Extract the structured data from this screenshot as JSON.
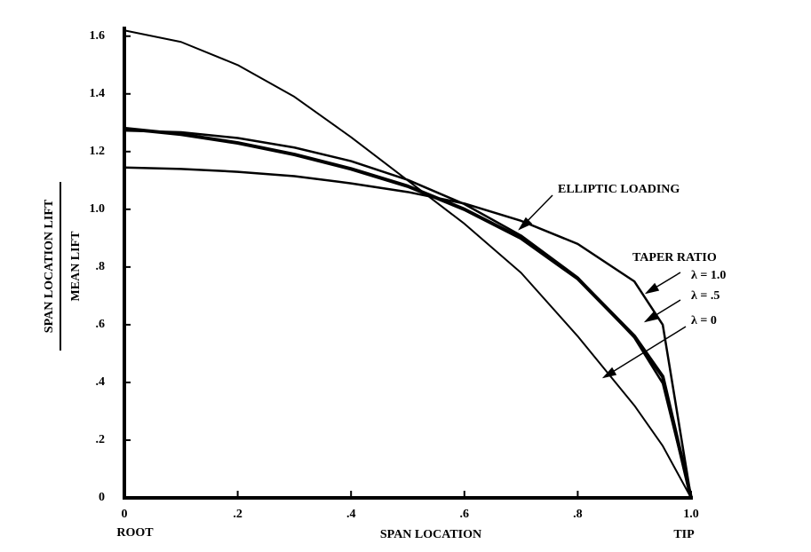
{
  "chart_data": {
    "type": "line",
    "ylabel": {
      "numerator": "SPAN LOCATION LIFT",
      "denominator": "MEAN LIFT"
    },
    "xlabel": "SPAN LOCATION",
    "x_end_labels": [
      "ROOT",
      "TIP"
    ],
    "annotations": [
      "ELLIPTIC LOADING",
      "TAPER RATIO",
      "λ = 1.0",
      "λ = .5",
      "λ = 0"
    ],
    "x": [
      0,
      0.1,
      0.2,
      0.3,
      0.4,
      0.5,
      0.6,
      0.7,
      0.8,
      0.9,
      0.95,
      1.0
    ],
    "series": [
      {
        "name": "ELLIPTIC LOADING",
        "color": "#000000",
        "values": [
          1.273,
          1.267,
          1.247,
          1.214,
          1.167,
          1.102,
          1.018,
          0.909,
          0.764,
          0.555,
          0.397,
          0
        ]
      },
      {
        "name": "λ = 1.0",
        "color": "#000000",
        "values": [
          1.145,
          1.14,
          1.13,
          1.115,
          1.09,
          1.06,
          1.02,
          0.96,
          0.88,
          0.75,
          0.6,
          0
        ]
      },
      {
        "name": "λ = .5",
        "color": "#000000",
        "values": [
          1.28,
          1.26,
          1.23,
          1.19,
          1.14,
          1.08,
          1.0,
          0.9,
          0.76,
          0.56,
          0.42,
          0
        ]
      },
      {
        "name": "λ = 0",
        "color": "#000000",
        "values": [
          1.62,
          1.58,
          1.5,
          1.39,
          1.25,
          1.1,
          0.95,
          0.78,
          0.56,
          0.32,
          0.18,
          0
        ]
      }
    ],
    "xlim": [
      0,
      1.0
    ],
    "ylim": [
      0,
      1.63
    ],
    "xticks": [
      {
        "value": 0,
        "label": "0"
      },
      {
        "value": 0.2,
        "label": ".2"
      },
      {
        "value": 0.4,
        "label": ".4"
      },
      {
        "value": 0.6,
        "label": ".6"
      },
      {
        "value": 0.8,
        "label": ".8"
      },
      {
        "value": 1.0,
        "label": "1.0"
      }
    ],
    "yticks": [
      0,
      {
        "value": 0.2,
        "label": ".2"
      },
      {
        "value": 0.4,
        "label": ".4"
      },
      {
        "value": 0.6,
        "label": ".6"
      },
      {
        "value": 0.8,
        "label": ".8"
      },
      {
        "value": 1.0,
        "label": "1.0"
      },
      1.2,
      1.4,
      1.6
    ],
    "grid": false
  }
}
